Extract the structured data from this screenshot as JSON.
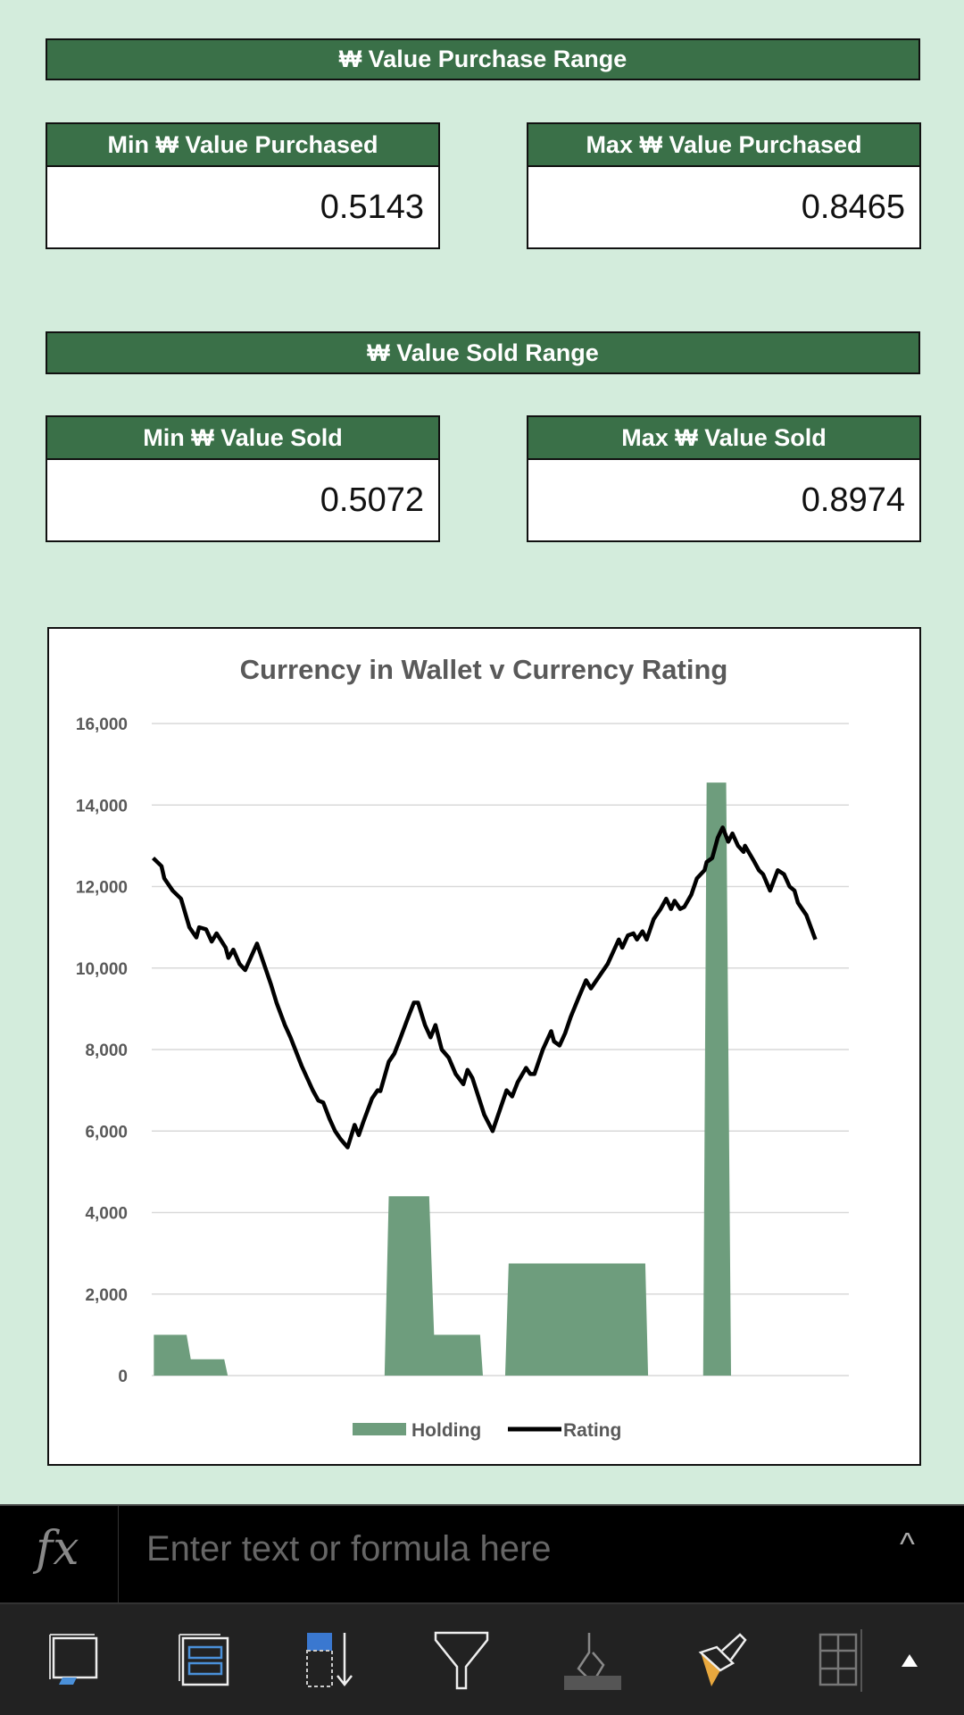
{
  "purchase": {
    "title": "₩ Value Purchase Range",
    "min_label": "Min ₩ Value Purchased",
    "min_value": "0.5143",
    "max_label": "Max ₩ Value Purchased",
    "max_value": "0.8465"
  },
  "sold": {
    "title": "₩ Value Sold Range",
    "min_label": "Min ₩ Value Sold",
    "min_value": "0.5072",
    "max_label": "Max ₩ Value Sold",
    "max_value": "0.8974"
  },
  "colors": {
    "header": "#3a7048",
    "holding": "#6e9d7d",
    "rating": "#000000",
    "background": "#d3ecdc"
  },
  "chart_data": {
    "type": "area+line",
    "title": "Currency in Wallet v Currency Rating",
    "xlabel": "",
    "ylabel": "",
    "ylim": [
      0,
      16000
    ],
    "xlim": [
      0,
      100
    ],
    "yticks": [
      "0",
      "2,000",
      "4,000",
      "6,000",
      "8,000",
      "10,000",
      "12,000",
      "14,000",
      "16,000"
    ],
    "grid": true,
    "legend_position": "bottom",
    "series": [
      {
        "name": "Holding",
        "type": "area",
        "x": [
          0.3,
          0.3,
          5.0,
          5.6,
          10.4,
          10.9,
          33.4,
          34.0,
          39.8,
          40.5,
          47.1,
          47.5,
          50.7,
          51.2,
          70.8,
          71.2,
          79.1,
          79.6,
          82.4,
          83.1
        ],
        "values": [
          0,
          1000,
          1000,
          400,
          400,
          0,
          0,
          4400,
          4400,
          1000,
          1000,
          0,
          0,
          2750,
          2750,
          0,
          0,
          14550,
          14550,
          0
        ]
      },
      {
        "name": "Rating",
        "type": "line",
        "x": [
          0.2,
          1.4,
          1.8,
          2.6,
          3.0,
          4.2,
          5.4,
          6.4,
          6.8,
          7.8,
          8.6,
          9.3,
          10.6,
          11.0,
          11.7,
          12.6,
          13.4,
          15.1,
          15.9,
          17.1,
          17.9,
          19.1,
          19.9,
          21.5,
          23.1,
          23.9,
          24.6,
          25.5,
          26.3,
          27.1,
          28.1,
          29.1,
          29.7,
          30.3,
          31.6,
          32.4,
          32.8,
          34.0,
          34.8,
          35.6,
          36.8,
          37.6,
          38.2,
          39.2,
          40.0,
          40.7,
          41.6,
          42.6,
          43.6,
          44.7,
          45.3,
          46.0,
          47.7,
          48.9,
          49.7,
          50.9,
          51.7,
          52.5,
          53.7,
          54.3,
          54.9,
          56.1,
          57.3,
          57.7,
          58.5,
          59.3,
          60.1,
          61.3,
          62.3,
          63.0,
          64.2,
          65.4,
          66.2,
          67.0,
          67.5,
          68.3,
          69.1,
          69.6,
          70.4,
          71.0,
          72.0,
          73.0,
          73.8,
          74.5,
          75.0,
          75.8,
          76.4,
          77.4,
          78.2,
          79.3,
          79.6,
          80.4,
          81.2,
          81.9,
          82.7,
          83.3,
          84.1,
          84.9,
          85.1,
          86.3,
          87.1,
          87.7,
          88.7,
          89.8,
          90.7,
          91.5,
          92.2,
          92.7,
          93.9,
          95.2
        ],
        "values": [
          12700,
          12500,
          12200,
          12000,
          11900,
          11700,
          11000,
          10750,
          11000,
          10950,
          10650,
          10850,
          10500,
          10250,
          10450,
          10100,
          9950,
          10600,
          10200,
          9600,
          9150,
          8600,
          8300,
          7600,
          7000,
          6750,
          6700,
          6300,
          6000,
          5800,
          5600,
          6150,
          5900,
          6200,
          6800,
          7000,
          6980,
          7700,
          7900,
          8250,
          8800,
          9150,
          9150,
          8600,
          8300,
          8600,
          8000,
          7800,
          7400,
          7150,
          7500,
          7300,
          6400,
          6000,
          6400,
          7000,
          6850,
          7200,
          7550,
          7400,
          7400,
          8000,
          8450,
          8200,
          8100,
          8400,
          8800,
          9300,
          9700,
          9500,
          9800,
          10100,
          10400,
          10700,
          10500,
          10800,
          10850,
          10700,
          10900,
          10700,
          11200,
          11450,
          11700,
          11450,
          11650,
          11450,
          11500,
          11800,
          12200,
          12400,
          12600,
          12700,
          13200,
          13450,
          13100,
          13300,
          13000,
          12850,
          13000,
          12650,
          12400,
          12300,
          11900,
          12400,
          12300,
          12000,
          11900,
          11600,
          11300,
          10700
        ]
      }
    ]
  },
  "formula_bar": {
    "icon": "fx-icon",
    "fx_glyph": "fx",
    "placeholder": "Enter text or formula here",
    "expand_glyph": "^"
  },
  "toolbar": {
    "icons": [
      "freeze-panes-icon",
      "table-icon",
      "sort-icon",
      "filter-icon",
      "fill-color-icon",
      "format-painter-icon",
      "cell-borders-icon",
      "expand-toolbar-icon"
    ]
  }
}
